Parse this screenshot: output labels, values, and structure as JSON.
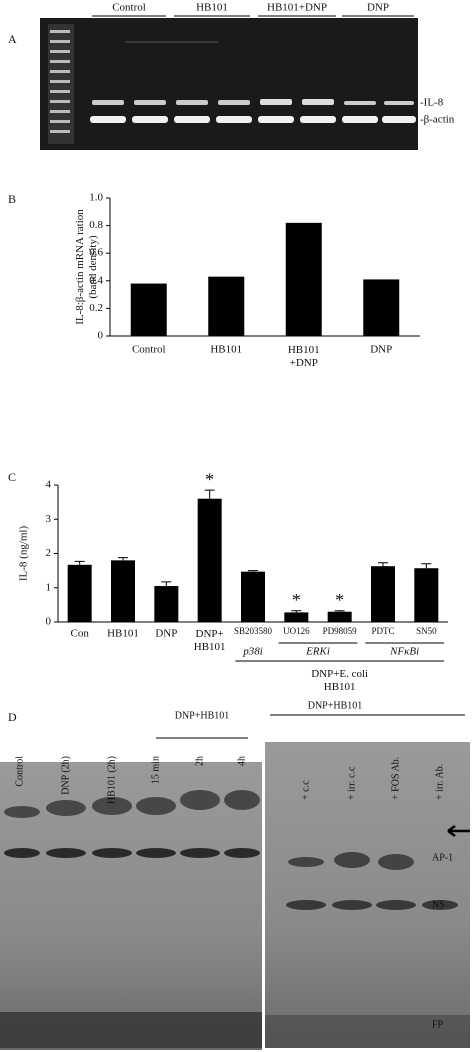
{
  "panel_labels": [
    "A",
    "B",
    "C",
    "D"
  ],
  "gel_a": {
    "lanes": [
      "Control",
      "HB101",
      "HB101+DNP",
      "DNP"
    ],
    "bands": [
      "-IL-8",
      "-β-actin"
    ]
  },
  "chart_data": [
    {
      "type": "bar",
      "ylabel": "IL-8:β-actin mRNA ration\n(band density)",
      "categories": [
        "Control",
        "HB101",
        "HB101\n+DNP",
        "DNP"
      ],
      "values": [
        0.38,
        0.43,
        0.82,
        0.41
      ],
      "color": "#000000",
      "ylim": [
        0,
        1
      ],
      "yticks": [
        {
          "value": 0,
          "label": "0"
        },
        0.2,
        0.4,
        0.6,
        0.8,
        {
          "value": 1,
          "label": "1.0"
        }
      ]
    },
    {
      "type": "bar",
      "ylabel": "IL-8 (ng/ml)",
      "categories": [
        "Con",
        "HB101",
        "DNP",
        "DNP+\nHB101",
        "SB203580",
        "UO126",
        "PD98059",
        "PDTC",
        "SN50"
      ],
      "values": [
        1.67,
        1.8,
        1.05,
        3.6,
        1.47,
        0.28,
        0.3,
        1.63,
        1.57
      ],
      "errors": [
        0.1,
        0.08,
        0.12,
        0.25,
        0.03,
        0.05,
        0.03,
        0.1,
        0.13
      ],
      "color": "#000000",
      "ylim": [
        0,
        4
      ],
      "yticks": [
        0,
        1,
        2,
        3,
        4
      ],
      "annotations": [
        {
          "text": "*",
          "x": "DNP+\nHB101"
        },
        {
          "text": "*",
          "x": "UO126"
        },
        {
          "text": "*",
          "x": "PD98059"
        }
      ],
      "groups": [
        {
          "label": "p38i",
          "categories": [
            "SB203580"
          ]
        },
        {
          "label": "ERKi",
          "categories": [
            "UO126",
            "PD98059"
          ]
        },
        {
          "label": "NFκBi",
          "categories": [
            "PDTC",
            "SN50"
          ]
        }
      ],
      "group_title": "DNP+E. coli\nHB101"
    }
  ],
  "gel_d_left": {
    "group": "DNP+HB101",
    "lanes": [
      "Control",
      "DNP (2h)",
      "HB101 (2h)",
      "15 min",
      "2h",
      "4h"
    ]
  },
  "gel_d_right": {
    "group": "DNP+HB101",
    "lanes": [
      "+ c.c",
      "+ irr. c.c",
      "+ FOS Ab.",
      "+ irr. Ab."
    ],
    "bands": [
      "AP-1",
      "NS",
      "FP"
    ]
  }
}
